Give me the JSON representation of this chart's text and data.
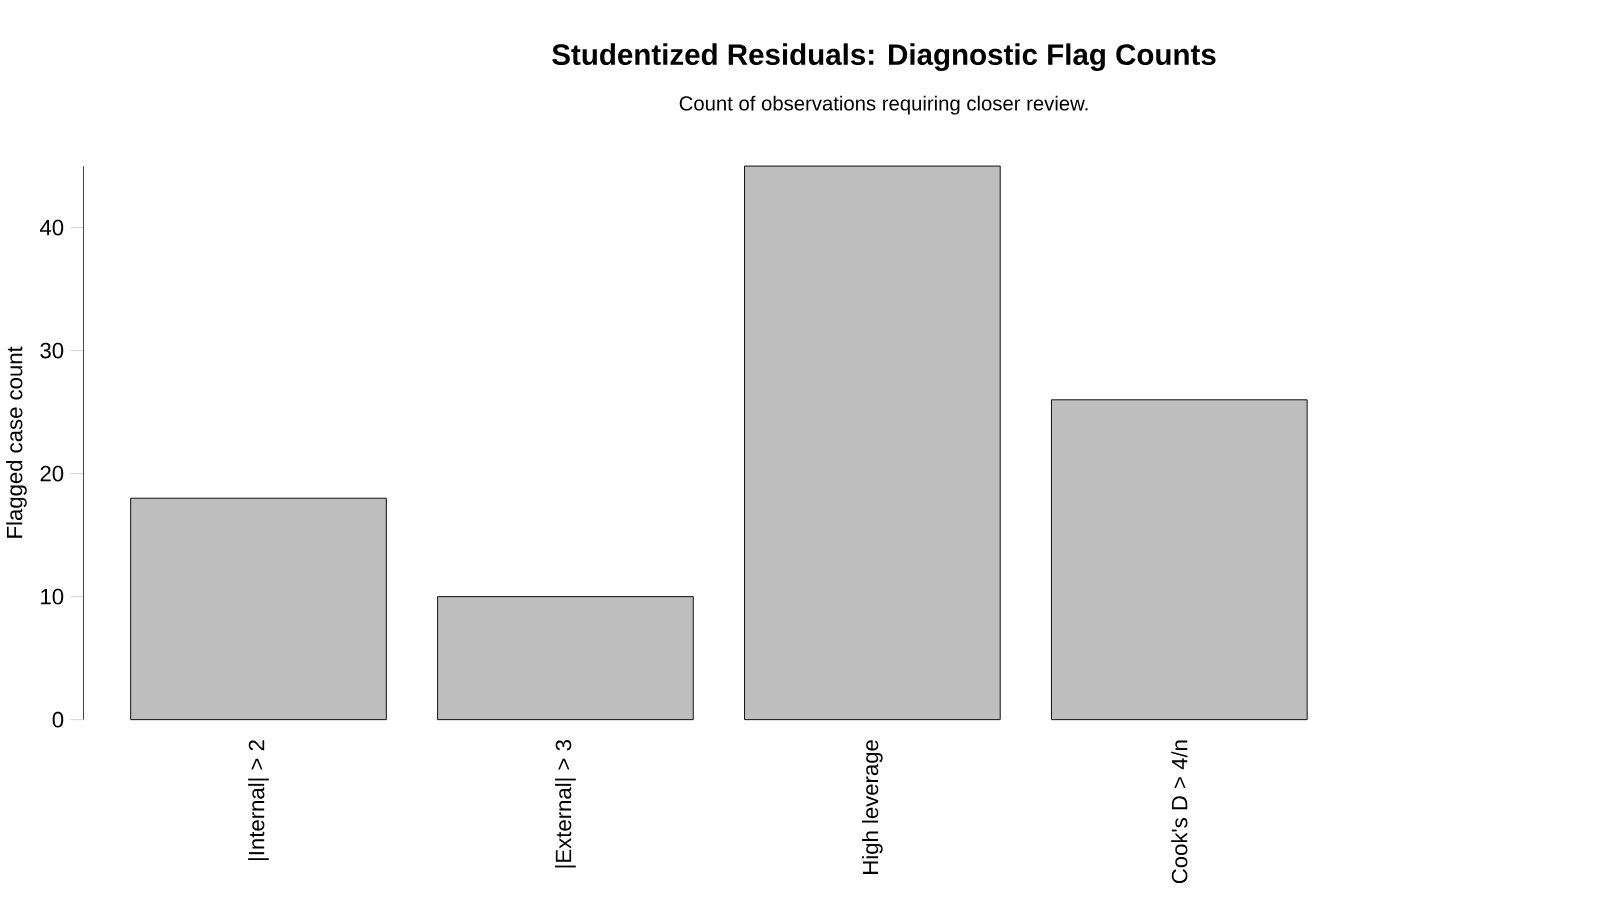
{
  "chart_data": {
    "type": "bar",
    "title": "Studentized Residuals: Diagnostic Flag Counts",
    "subtitle": "Count of observations requiring closer review.",
    "ylabel": "Flagged case count",
    "categories": [
      "|Internal| > 2",
      "|External| > 3",
      "High leverage",
      "Cook's D > 4/n"
    ],
    "values": [
      18,
      10,
      45,
      26
    ],
    "color": "#bebebe",
    "ylim": [
      0,
      45
    ],
    "yticks": [
      0,
      10,
      20,
      30,
      40
    ],
    "grid": false
  }
}
